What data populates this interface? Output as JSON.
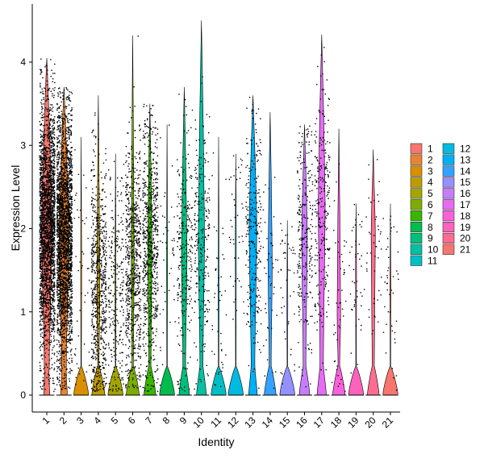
{
  "chart_data": {
    "type": "violin",
    "xlabel": "Identity",
    "ylabel": "Expression Level",
    "categories": [
      "1",
      "2",
      "3",
      "4",
      "5",
      "6",
      "7",
      "8",
      "9",
      "10",
      "11",
      "12",
      "13",
      "14",
      "15",
      "16",
      "17",
      "18",
      "19",
      "20",
      "21"
    ],
    "yticks": [
      0,
      1,
      2,
      3,
      4
    ],
    "ylim": [
      -0.2,
      4.55
    ],
    "legend": {
      "placement": "right",
      "columns": 2,
      "items": [
        {
          "label": "1",
          "color": "#F8766D"
        },
        {
          "label": "2",
          "color": "#EA8331"
        },
        {
          "label": "3",
          "color": "#D89000"
        },
        {
          "label": "4",
          "color": "#C09B00"
        },
        {
          "label": "5",
          "color": "#A3A500"
        },
        {
          "label": "6",
          "color": "#7CAE00"
        },
        {
          "label": "7",
          "color": "#39B600"
        },
        {
          "label": "8",
          "color": "#00BB4E"
        },
        {
          "label": "9",
          "color": "#00BF7D"
        },
        {
          "label": "10",
          "color": "#00C1A3"
        },
        {
          "label": "11",
          "color": "#00BFC4"
        },
        {
          "label": "12",
          "color": "#00BAE0"
        },
        {
          "label": "13",
          "color": "#00B0F6"
        },
        {
          "label": "14",
          "color": "#35A2FF"
        },
        {
          "label": "15",
          "color": "#9590FF"
        },
        {
          "label": "16",
          "color": "#C77CFF"
        },
        {
          "label": "17",
          "color": "#E76BF3"
        },
        {
          "label": "18",
          "color": "#FA62DB"
        },
        {
          "label": "19",
          "color": "#FF62BC"
        },
        {
          "label": "20",
          "color": "#FF6C91"
        },
        {
          "label": "21",
          "color": "#F8766D"
        }
      ]
    },
    "groups": [
      {
        "name": "1",
        "color": "#F8766D",
        "max": 4.05,
        "zero_frac": 0.25,
        "point_density": "very high",
        "mean_nonzero": 2.0
      },
      {
        "name": "2",
        "color": "#EA8331",
        "max": 3.7,
        "zero_frac": 0.3,
        "point_density": "very high",
        "mean_nonzero": 1.9
      },
      {
        "name": "3",
        "color": "#D89000",
        "max": 3.1,
        "zero_frac": 0.95,
        "point_density": "low",
        "mean_nonzero": 1.5
      },
      {
        "name": "4",
        "color": "#C09B00",
        "max": 3.6,
        "zero_frac": 0.8,
        "point_density": "high",
        "mean_nonzero": 1.3
      },
      {
        "name": "5",
        "color": "#A3A500",
        "max": 2.9,
        "zero_frac": 0.97,
        "point_density": "medium",
        "mean_nonzero": 1.2
      },
      {
        "name": "6",
        "color": "#7CAE00",
        "max": 4.32,
        "zero_frac": 0.8,
        "point_density": "high",
        "mean_nonzero": 1.6
      },
      {
        "name": "7",
        "color": "#39B600",
        "max": 3.5,
        "zero_frac": 0.7,
        "point_density": "high",
        "mean_nonzero": 1.8
      },
      {
        "name": "8",
        "color": "#00BB4E",
        "max": 3.25,
        "zero_frac": 0.97,
        "point_density": "low",
        "mean_nonzero": 1.5
      },
      {
        "name": "9",
        "color": "#00BF7D",
        "max": 3.7,
        "zero_frac": 0.6,
        "point_density": "medium",
        "mean_nonzero": 1.7
      },
      {
        "name": "10",
        "color": "#00C1A3",
        "max": 4.5,
        "zero_frac": 0.55,
        "point_density": "medium",
        "mean_nonzero": 1.9
      },
      {
        "name": "11",
        "color": "#00BFC4",
        "max": 3.1,
        "zero_frac": 0.97,
        "point_density": "low",
        "mean_nonzero": 1.2
      },
      {
        "name": "12",
        "color": "#00BAE0",
        "max": 2.9,
        "zero_frac": 0.97,
        "point_density": "low",
        "mean_nonzero": 1.9
      },
      {
        "name": "13",
        "color": "#00B0F6",
        "max": 3.6,
        "zero_frac": 0.45,
        "point_density": "medium",
        "mean_nonzero": 2.0
      },
      {
        "name": "14",
        "color": "#35A2FF",
        "max": 3.4,
        "zero_frac": 0.7,
        "point_density": "low",
        "mean_nonzero": 1.6
      },
      {
        "name": "15",
        "color": "#9590FF",
        "max": 2.1,
        "zero_frac": 0.97,
        "point_density": "low",
        "mean_nonzero": 1.1
      },
      {
        "name": "16",
        "color": "#C77CFF",
        "max": 3.25,
        "zero_frac": 0.6,
        "point_density": "medium",
        "mean_nonzero": 1.9
      },
      {
        "name": "17",
        "color": "#E76BF3",
        "max": 4.33,
        "zero_frac": 0.5,
        "point_density": "medium",
        "mean_nonzero": 2.3
      },
      {
        "name": "18",
        "color": "#FA62DB",
        "max": 3.2,
        "zero_frac": 0.75,
        "point_density": "low",
        "mean_nonzero": 1.0
      },
      {
        "name": "19",
        "color": "#FF62BC",
        "max": 2.3,
        "zero_frac": 0.97,
        "point_density": "low",
        "mean_nonzero": 1.5
      },
      {
        "name": "20",
        "color": "#FF6C91",
        "max": 2.95,
        "zero_frac": 0.7,
        "point_density": "low",
        "mean_nonzero": 1.9
      },
      {
        "name": "21",
        "color": "#F8766D",
        "max": 2.3,
        "zero_frac": 0.97,
        "point_density": "low",
        "mean_nonzero": 1.3
      }
    ]
  }
}
